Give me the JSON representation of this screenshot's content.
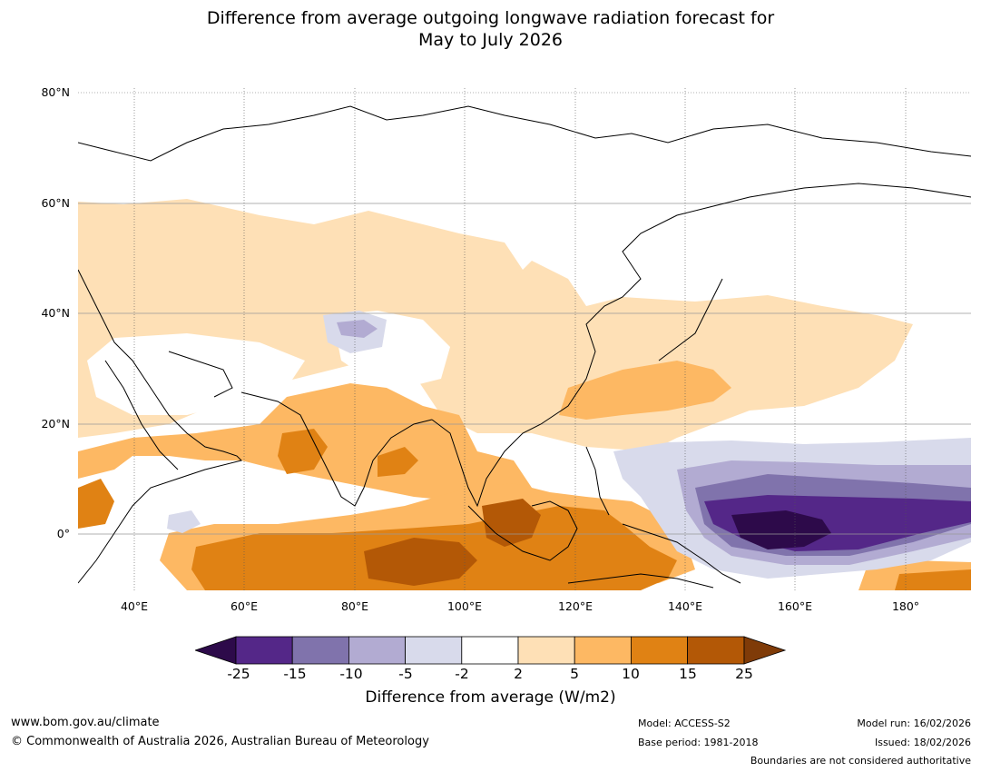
{
  "title": {
    "line1": "Difference from average outgoing longwave radiation forecast for",
    "line2": "May to July 2026"
  },
  "map": {
    "lat_labels": [
      "80°N",
      "60°N",
      "40°N",
      "20°N",
      "0°"
    ],
    "lon_labels": [
      "40°E",
      "60°E",
      "80°E",
      "100°E",
      "120°E",
      "140°E",
      "160°E",
      "180°"
    ]
  },
  "colorbar": {
    "ticks": [
      "-25",
      "-15",
      "-10",
      "-5",
      "-2",
      "2",
      "5",
      "10",
      "15",
      "25"
    ],
    "colors": [
      "#2d0a4a",
      "#542788",
      "#8073ac",
      "#b2abd2",
      "#d8daeb",
      "#ffffff",
      "#fee0b6",
      "#fdb863",
      "#e08214",
      "#b35806",
      "#7f3b08"
    ],
    "label": "Difference from average (W/m2)"
  },
  "footer": {
    "url": "www.bom.gov.au/climate",
    "copyright": "© Commonwealth of Australia 2026, Australian Bureau of Meteorology",
    "model": "Model: ACCESS-S2",
    "base_period": "Base period: 1981-2018",
    "model_run": "Model run: 16/02/2026",
    "issued": "Issued: 18/02/2026",
    "disclaimer": "Boundaries are not considered authoritative"
  }
}
